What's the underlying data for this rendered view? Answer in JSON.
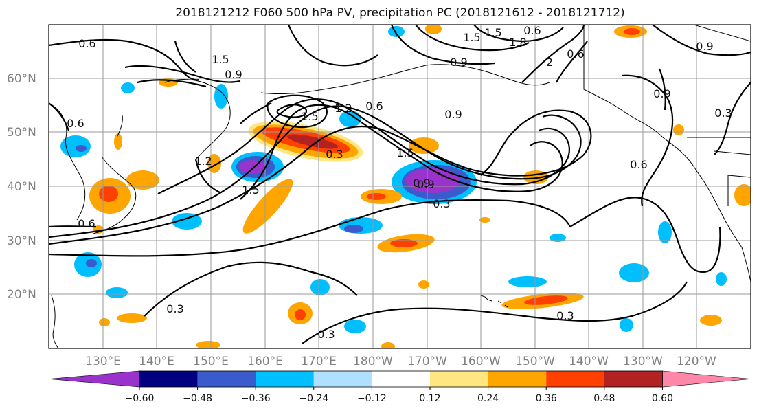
{
  "title": "2018121212 F060 500 hPa PV, precipitation PC (2018121612 - 2018121712)",
  "axes": {
    "lat_labels": [
      "60°N",
      "50°N",
      "40°N",
      "30°N",
      "20°N"
    ],
    "lon_labels": [
      "130°E",
      "140°E",
      "150°E",
      "160°E",
      "170°E",
      "180°W",
      "170°W",
      "160°W",
      "150°W",
      "140°W",
      "130°W",
      "120°W"
    ]
  },
  "colorbar": {
    "levels": [
      "−0.60",
      "−0.48",
      "−0.36",
      "−0.24",
      "−0.12",
      "0.12",
      "0.24",
      "0.36",
      "0.48",
      "0.60"
    ],
    "colors": [
      "#9933cc",
      "#000080",
      "#3a5bcc",
      "#00bfff",
      "#b0e0ff",
      "#ffffff",
      "#ffe680",
      "#ffa500",
      "#ff4000",
      "#b22222",
      "#ff88aa"
    ]
  },
  "contour_labels": [
    "0.6",
    "1.5",
    "0.9",
    "1.2",
    "1.5",
    "0.6",
    "0.9",
    "1.5",
    "1.5",
    "1.2",
    "0.3",
    "1.5",
    "0.9",
    "0.3",
    "0.6",
    "0.3",
    "0.3",
    "0.3",
    "0.6",
    "0.9",
    "0.3",
    "1.8",
    "2",
    "0.9",
    "1.5",
    "0.9",
    "0.9",
    "0.6",
    "0.6",
    "0.6"
  ]
}
